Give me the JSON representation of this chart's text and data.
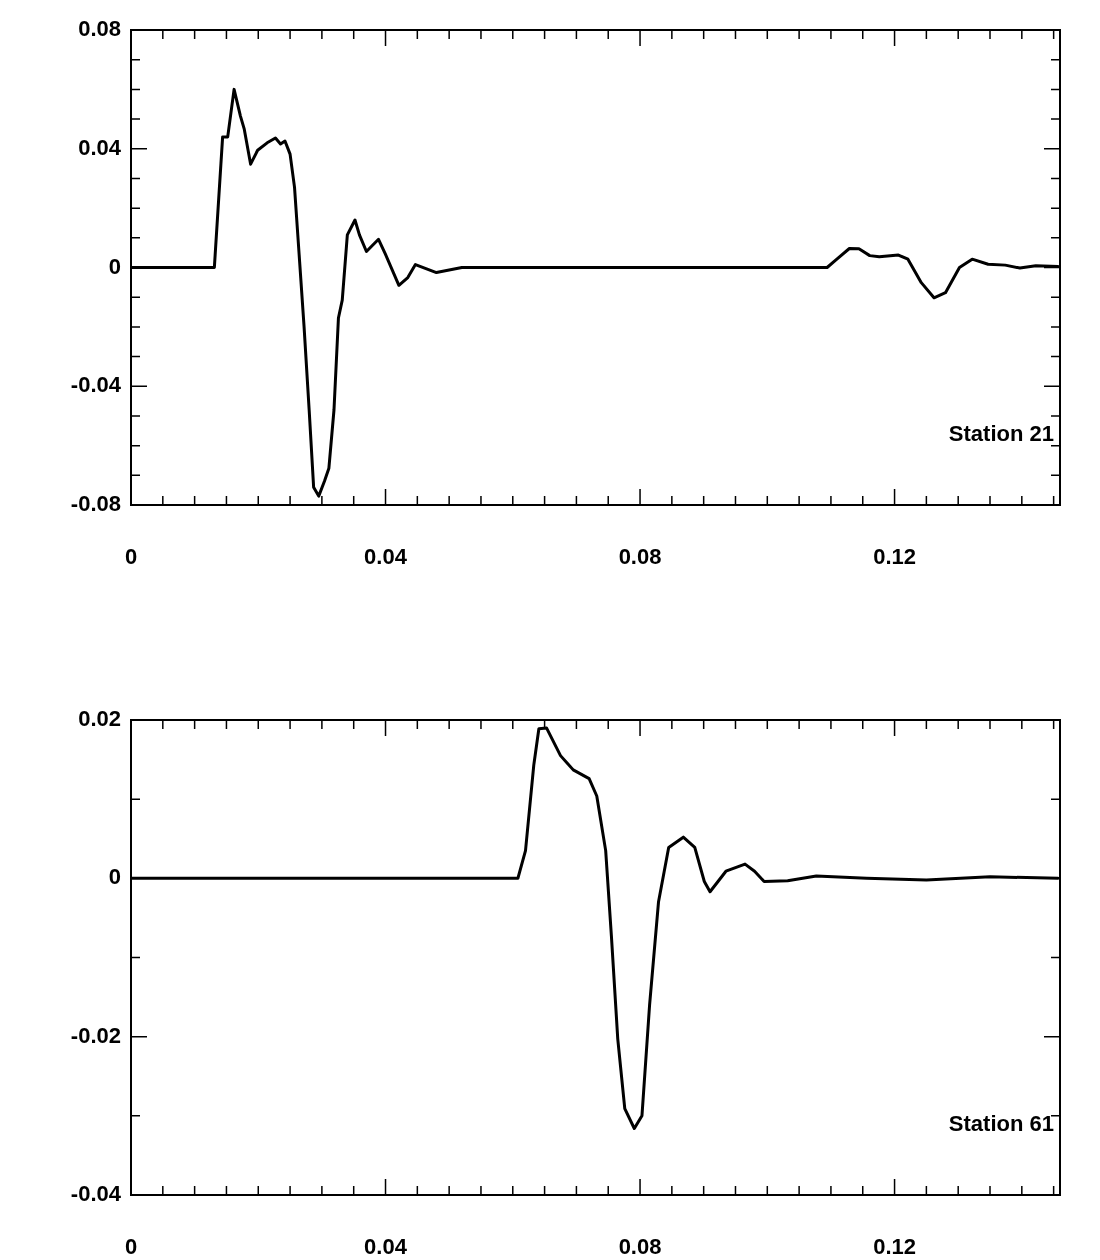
{
  "chart_data": [
    {
      "type": "line",
      "annotations": [
        "Station 21"
      ],
      "grid": false,
      "legend": false,
      "marker": "none",
      "line_style": "solid",
      "x": [
        0,
        0.0131,
        0.0144,
        0.0152,
        0.0162,
        0.0172,
        0.0178,
        0.0188,
        0.0199,
        0.0214,
        0.0227,
        0.0235,
        0.0242,
        0.025,
        0.0257,
        0.0265,
        0.0272,
        0.028,
        0.0287,
        0.0295,
        0.0304,
        0.0311,
        0.0319,
        0.0326,
        0.0332,
        0.034,
        0.0352,
        0.0359,
        0.037,
        0.0389,
        0.04,
        0.0421,
        0.0435,
        0.0447,
        0.048,
        0.052,
        0.06,
        0.09,
        0.1094,
        0.1107,
        0.1129,
        0.1144,
        0.1161,
        0.1176,
        0.1206,
        0.1221,
        0.1242,
        0.1262,
        0.128,
        0.1302,
        0.1322,
        0.1347,
        0.1374,
        0.1397,
        0.1422,
        0.1457
      ],
      "series": [
        {
          "color": "#000000",
          "values": [
            0,
            0,
            0.044,
            0.044,
            0.06,
            0.051,
            0.0466,
            0.0348,
            0.0395,
            0.042,
            0.0436,
            0.0416,
            0.0426,
            0.0382,
            0.027,
            0.002,
            -0.02,
            -0.048,
            -0.074,
            -0.077,
            -0.072,
            -0.0676,
            -0.048,
            -0.017,
            -0.011,
            0.011,
            0.016,
            0.011,
            0.0054,
            0.0095,
            0.0044,
            -0.006,
            -0.0034,
            0.001,
            -0.0017,
            0,
            0,
            0,
            0,
            0.0024,
            0.0064,
            0.0063,
            0.004,
            0.0036,
            0.0042,
            0.0028,
            -0.0051,
            -0.0102,
            -0.0085,
            0,
            0.0028,
            0.0011,
            0.0008,
            -0.0002,
            0.0006,
            0.0003
          ]
        }
      ],
      "xlim": [
        0,
        0.146
      ],
      "xticks": [
        0,
        {
          "value": 0.005,
          "label": null
        },
        {
          "value": 0.01,
          "label": null
        },
        {
          "value": 0.015,
          "label": null
        },
        {
          "value": 0.02,
          "label": null
        },
        {
          "value": 0.025,
          "label": null
        },
        {
          "value": 0.03,
          "label": null
        },
        {
          "value": 0.035,
          "label": null
        },
        0.04,
        {
          "value": 0.045,
          "label": null
        },
        {
          "value": 0.05,
          "label": null
        },
        {
          "value": 0.055,
          "label": null
        },
        {
          "value": 0.06,
          "label": null
        },
        {
          "value": 0.065,
          "label": null
        },
        {
          "value": 0.07,
          "label": null
        },
        {
          "value": 0.075,
          "label": null
        },
        0.08,
        {
          "value": 0.085,
          "label": null
        },
        {
          "value": 0.09,
          "label": null
        },
        {
          "value": 0.095,
          "label": null
        },
        {
          "value": 0.1,
          "label": null
        },
        {
          "value": 0.105,
          "label": null
        },
        {
          "value": 0.11,
          "label": null
        },
        {
          "value": 0.115,
          "label": null
        },
        0.12,
        {
          "value": 0.125,
          "label": null
        },
        {
          "value": 0.13,
          "label": null
        },
        {
          "value": 0.135,
          "label": null
        },
        {
          "value": 0.14,
          "label": null
        },
        {
          "value": 0.145,
          "label": null
        }
      ],
      "ylim": [
        -0.08,
        0.08
      ],
      "yticks": [
        -0.08,
        {
          "value": -0.07,
          "label": null
        },
        {
          "value": -0.06,
          "label": null
        },
        {
          "value": -0.05,
          "label": null
        },
        -0.04,
        {
          "value": -0.03,
          "label": null
        },
        {
          "value": -0.02,
          "label": null
        },
        {
          "value": -0.01,
          "label": null
        },
        0,
        {
          "value": 0.01,
          "label": null
        },
        {
          "value": 0.02,
          "label": null
        },
        {
          "value": 0.03,
          "label": null
        },
        0.04,
        {
          "value": 0.05,
          "label": null
        },
        {
          "value": 0.06,
          "label": null
        },
        {
          "value": 0.07,
          "label": null
        },
        0.08
      ]
    },
    {
      "type": "line",
      "annotations": [
        "Station 61"
      ],
      "grid": false,
      "legend": false,
      "marker": "none",
      "line_style": "solid",
      "x": [
        0,
        0.0608,
        0.062,
        0.0633,
        0.0641,
        0.0653,
        0.0675,
        0.0695,
        0.072,
        0.0732,
        0.0746,
        0.0755,
        0.0765,
        0.0776,
        0.0791,
        0.0803,
        0.0815,
        0.0829,
        0.0845,
        0.0868,
        0.0886,
        0.0901,
        0.091,
        0.0935,
        0.0965,
        0.098,
        0.0995,
        0.1032,
        0.1077,
        0.1156,
        0.125,
        0.135,
        0.1457
      ],
      "series": [
        {
          "color": "#000000",
          "values": [
            0,
            0,
            0.0035,
            0.0143,
            0.0189,
            0.019,
            0.0155,
            0.0137,
            0.0126,
            0.0104,
            0.0035,
            -0.0073,
            -0.0203,
            -0.0291,
            -0.0316,
            -0.03,
            -0.016,
            -0.003,
            0.0039,
            0.0052,
            0.0039,
            -0.0004,
            -0.0017,
            0.0009,
            0.0018,
            0.0009,
            -0.0004,
            -0.0003,
            0.0003,
            0,
            -0.0002,
            0.0002,
            0
          ]
        }
      ],
      "xlim": [
        0,
        0.146
      ],
      "xticks": [
        0,
        {
          "value": 0.005,
          "label": null
        },
        {
          "value": 0.01,
          "label": null
        },
        {
          "value": 0.015,
          "label": null
        },
        {
          "value": 0.02,
          "label": null
        },
        {
          "value": 0.025,
          "label": null
        },
        {
          "value": 0.03,
          "label": null
        },
        {
          "value": 0.035,
          "label": null
        },
        0.04,
        {
          "value": 0.045,
          "label": null
        },
        {
          "value": 0.05,
          "label": null
        },
        {
          "value": 0.055,
          "label": null
        },
        {
          "value": 0.06,
          "label": null
        },
        {
          "value": 0.065,
          "label": null
        },
        {
          "value": 0.07,
          "label": null
        },
        {
          "value": 0.075,
          "label": null
        },
        0.08,
        {
          "value": 0.085,
          "label": null
        },
        {
          "value": 0.09,
          "label": null
        },
        {
          "value": 0.095,
          "label": null
        },
        {
          "value": 0.1,
          "label": null
        },
        {
          "value": 0.105,
          "label": null
        },
        {
          "value": 0.11,
          "label": null
        },
        {
          "value": 0.115,
          "label": null
        },
        0.12,
        {
          "value": 0.125,
          "label": null
        },
        {
          "value": 0.13,
          "label": null
        },
        {
          "value": 0.135,
          "label": null
        },
        {
          "value": 0.14,
          "label": null
        },
        {
          "value": 0.145,
          "label": null
        }
      ],
      "ylim": [
        -0.04,
        0.02
      ],
      "yticks": [
        -0.04,
        {
          "value": -0.03,
          "label": null
        },
        -0.02,
        {
          "value": -0.01,
          "label": null
        },
        0,
        {
          "value": 0.01,
          "label": null
        },
        0.02
      ]
    }
  ]
}
